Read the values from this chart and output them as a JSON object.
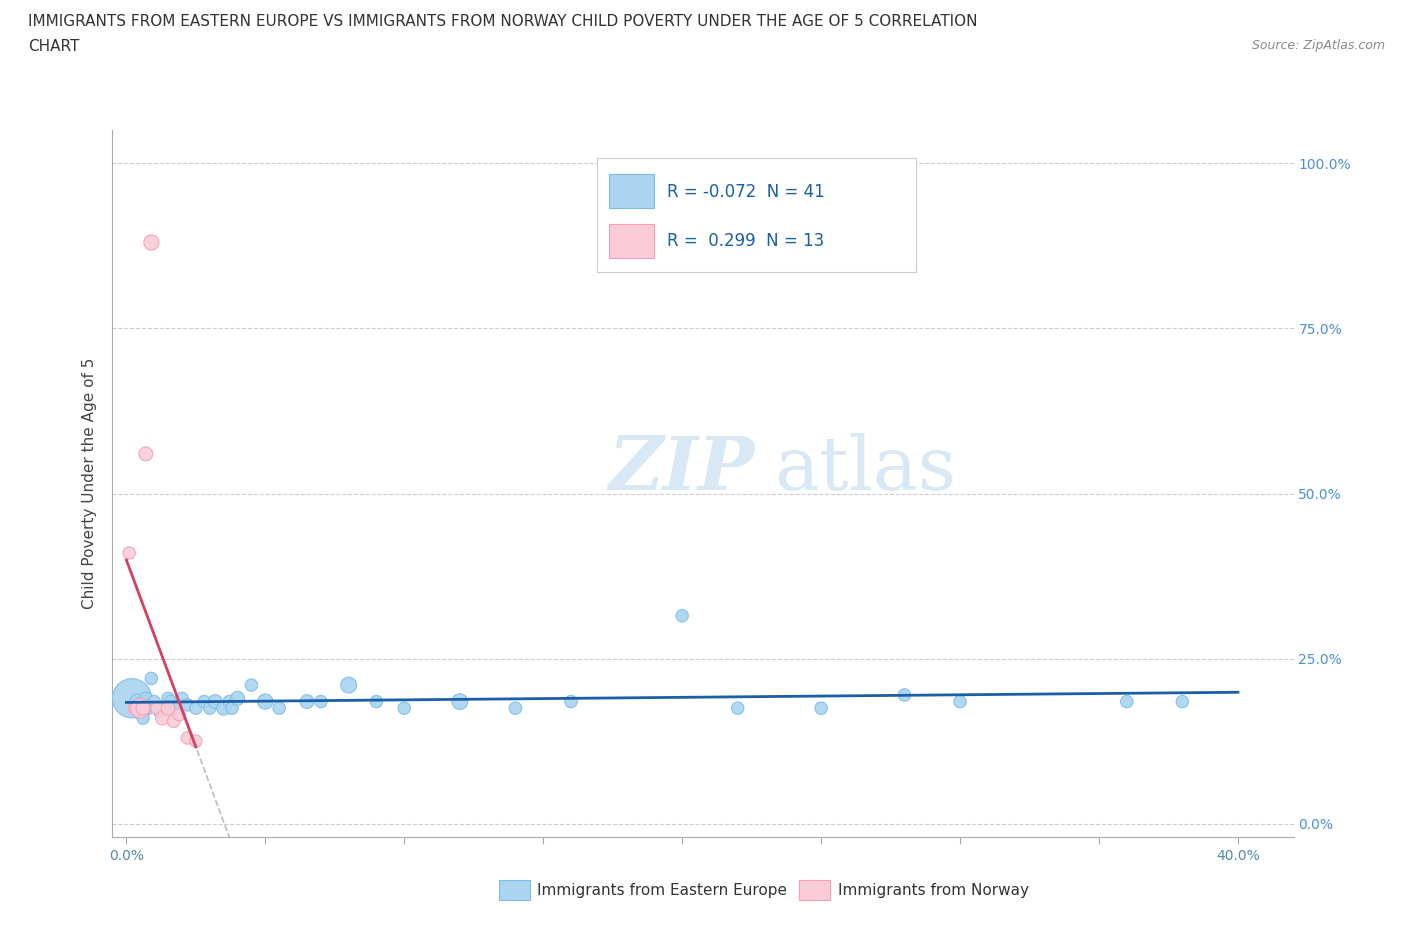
{
  "title_line1": "IMMIGRANTS FROM EASTERN EUROPE VS IMMIGRANTS FROM NORWAY CHILD POVERTY UNDER THE AGE OF 5 CORRELATION",
  "title_line2": "CHART",
  "source_text": "Source: ZipAtlas.com",
  "xlabel_blue": "Immigrants from Eastern Europe",
  "xlabel_pink": "Immigrants from Norway",
  "ylabel": "Child Poverty Under the Age of 5",
  "xlim": [
    -0.005,
    0.42
  ],
  "ylim": [
    -0.02,
    1.05
  ],
  "grid_color": "#cccccc",
  "watermark_zip": "ZIP",
  "watermark_atlas": "atlas",
  "blue_color": "#7bbfe8",
  "blue_fill": "#aad4f0",
  "pink_color": "#f4a0b8",
  "pink_fill": "#f9ccd8",
  "trend_blue": "#1a5fa8",
  "trend_pink": "#d44060",
  "trend_gray": "#bbbbbb",
  "R_blue": -0.072,
  "N_blue": 41,
  "R_pink": 0.299,
  "N_pink": 13,
  "blue_points_x": [
    0.002,
    0.004,
    0.005,
    0.006,
    0.007,
    0.008,
    0.009,
    0.01,
    0.012,
    0.013,
    0.015,
    0.016,
    0.018,
    0.02,
    0.022,
    0.025,
    0.028,
    0.03,
    0.032,
    0.035,
    0.037,
    0.038,
    0.04,
    0.045,
    0.05,
    0.055,
    0.065,
    0.07,
    0.08,
    0.09,
    0.1,
    0.12,
    0.14,
    0.16,
    0.2,
    0.22,
    0.25,
    0.28,
    0.3,
    0.36,
    0.38
  ],
  "blue_points_y": [
    0.19,
    0.185,
    0.18,
    0.16,
    0.19,
    0.175,
    0.22,
    0.185,
    0.17,
    0.175,
    0.19,
    0.185,
    0.175,
    0.19,
    0.18,
    0.175,
    0.185,
    0.175,
    0.185,
    0.175,
    0.185,
    0.175,
    0.19,
    0.21,
    0.185,
    0.175,
    0.185,
    0.185,
    0.21,
    0.185,
    0.175,
    0.185,
    0.175,
    0.185,
    0.315,
    0.175,
    0.175,
    0.195,
    0.185,
    0.185,
    0.185
  ],
  "blue_sizes": [
    800,
    120,
    100,
    80,
    80,
    80,
    80,
    80,
    80,
    80,
    80,
    80,
    80,
    80,
    80,
    80,
    80,
    80,
    100,
    100,
    80,
    80,
    100,
    80,
    120,
    80,
    100,
    80,
    130,
    80,
    80,
    130,
    80,
    80,
    80,
    80,
    80,
    80,
    80,
    80,
    80
  ],
  "pink_points_x": [
    0.001,
    0.003,
    0.005,
    0.006,
    0.007,
    0.009,
    0.011,
    0.013,
    0.015,
    0.017,
    0.019,
    0.022,
    0.025
  ],
  "pink_points_y": [
    0.41,
    0.175,
    0.175,
    0.175,
    0.56,
    0.88,
    0.175,
    0.16,
    0.175,
    0.155,
    0.165,
    0.13,
    0.125
  ],
  "pink_sizes": [
    80,
    80,
    200,
    100,
    100,
    120,
    80,
    100,
    100,
    80,
    80,
    80,
    80
  ],
  "xtick_vals": [
    0.0,
    0.05,
    0.1,
    0.15,
    0.2,
    0.25,
    0.3,
    0.35,
    0.4
  ],
  "ytick_vals": [
    0.0,
    0.25,
    0.5,
    0.75,
    1.0
  ]
}
